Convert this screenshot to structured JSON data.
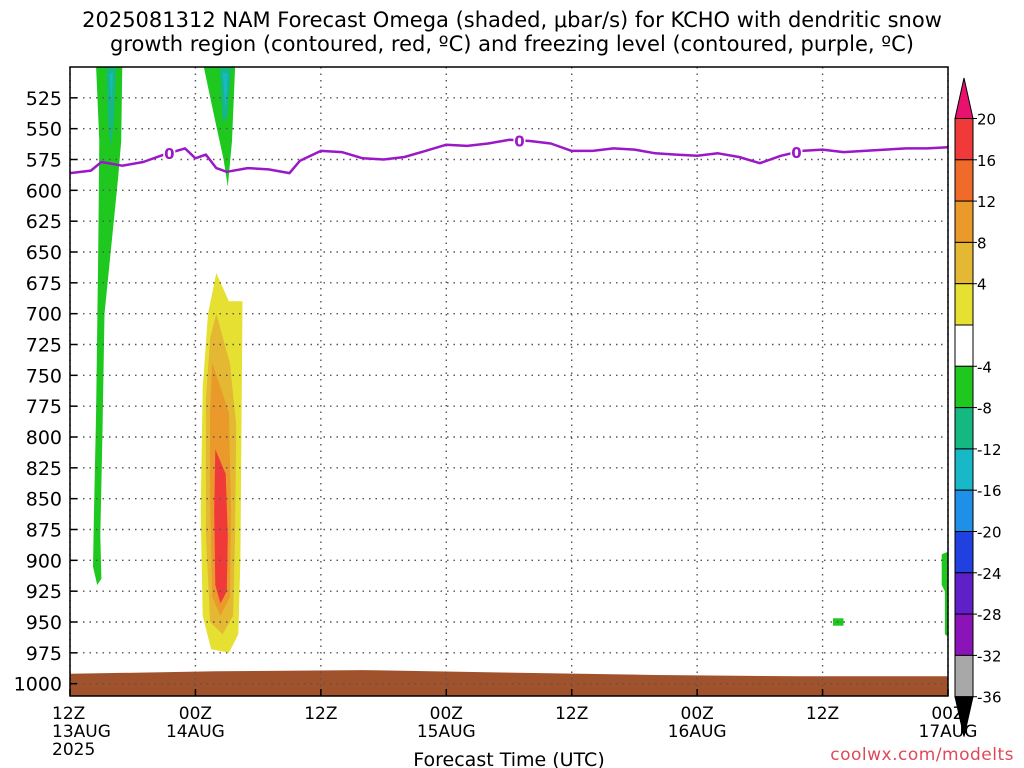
{
  "title_line1": "2025081312 NAM Forecast Omega (shaded, μbar/s) for KCHO with dendritic snow",
  "title_line2": "growth region (contoured, red, ºC) and freezing level (contoured, purple, ºC)",
  "credit": "coolwx.com/modelts",
  "chart_data": {
    "type": "time-height cross-section",
    "xlabel": "Forecast Time (UTC)",
    "ylabel": "",
    "x_ticks": [
      {
        "line1": "12Z",
        "line2": "13AUG",
        "line3": "2025",
        "hour": 0
      },
      {
        "line1": "00Z",
        "line2": "14AUG",
        "line3": "",
        "hour": 12
      },
      {
        "line1": "12Z",
        "line2": "",
        "line3": "",
        "hour": 24
      },
      {
        "line1": "00Z",
        "line2": "15AUG",
        "line3": "",
        "hour": 36
      },
      {
        "line1": "12Z",
        "line2": "",
        "line3": "",
        "hour": 48
      },
      {
        "line1": "00Z",
        "line2": "16AUG",
        "line3": "",
        "hour": 60
      },
      {
        "line1": "12Z",
        "line2": "",
        "line3": "",
        "hour": 72
      },
      {
        "line1": "00Z",
        "line2": "17AUG",
        "line3": "",
        "hour": 84
      }
    ],
    "xlim_hours": [
      0,
      84
    ],
    "y_ticks": [
      525,
      550,
      575,
      600,
      625,
      650,
      675,
      700,
      725,
      750,
      775,
      800,
      825,
      850,
      875,
      900,
      925,
      950,
      975,
      1000
    ],
    "ylim_hPa": [
      500,
      1010
    ],
    "grid": true,
    "colorbar": {
      "labels": [
        "20",
        "16",
        "12",
        "8",
        "4",
        "-4",
        "-8",
        "-12",
        "-16",
        "-20",
        "-24",
        "-28",
        "-32",
        "-36"
      ],
      "colors": [
        "#e8116e",
        "#f03a3a",
        "#f06a2a",
        "#ea9a2a",
        "#e4b832",
        "#e6e032",
        "#ffffff",
        "#1ec81e",
        "#14b880",
        "#18b8c8",
        "#1e90e8",
        "#2040e0",
        "#6020c8",
        "#8a14b8",
        "#a8a8a8",
        "#000000"
      ]
    },
    "freezing_level": {
      "label": "0",
      "color": "#9b18c8",
      "hours": [
        0,
        2,
        3,
        5,
        7,
        9,
        11,
        12,
        13,
        14,
        15,
        17,
        19,
        21,
        22,
        24,
        26,
        28,
        30,
        32,
        34,
        36,
        38,
        40,
        42,
        44,
        46,
        48,
        50,
        52,
        54,
        56,
        58,
        60,
        62,
        64,
        66,
        68,
        70,
        72,
        74,
        76,
        78,
        80,
        82,
        84
      ],
      "pressure": [
        586,
        584,
        577,
        580,
        577,
        571,
        566,
        574,
        571,
        582,
        585,
        582,
        583,
        586,
        576,
        568,
        569,
        574,
        575,
        573,
        568,
        563,
        564,
        562,
        559,
        560,
        562,
        568,
        568,
        566,
        567,
        570,
        571,
        572,
        570,
        573,
        578,
        572,
        568,
        567,
        569,
        568,
        567,
        566,
        566,
        565
      ],
      "label_hours": [
        9.5,
        43,
        69.5
      ]
    },
    "omega_features": [
      {
        "name": "upward motion band",
        "value_range": [
          -8,
          -4
        ],
        "hour_range": [
          2.5,
          5.0
        ],
        "pressure_range": [
          500,
          920
        ]
      },
      {
        "name": "upward motion band",
        "value_range": [
          -12,
          -8
        ],
        "hour_range": [
          3.5,
          4.4
        ],
        "pressure_range": [
          500,
          560
        ]
      },
      {
        "name": "upward motion band",
        "value_range": [
          -8,
          -4
        ],
        "hour_range": [
          12.8,
          15.8
        ],
        "pressure_range": [
          500,
          595
        ]
      },
      {
        "name": "downward motion core",
        "value_range": [
          4,
          20
        ],
        "hour_range": [
          12.5,
          16.5
        ],
        "pressure_range": [
          667,
          975
        ]
      },
      {
        "name": "small upward patch",
        "value_range": [
          -8,
          -4
        ],
        "hour_range": [
          73.0,
          74.0
        ],
        "pressure_range": [
          947,
          953
        ]
      },
      {
        "name": "small upward patch",
        "value_range": [
          -8,
          -4
        ],
        "hour_range": [
          83.4,
          84
        ],
        "pressure_range": [
          895,
          960
        ]
      }
    ],
    "surface_pressure_hPa_approx": [
      992,
      990,
      989,
      991,
      993,
      994,
      994
    ]
  }
}
